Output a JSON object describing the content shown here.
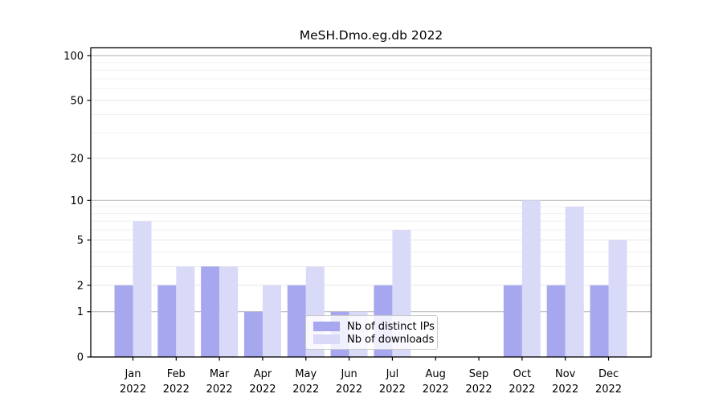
{
  "title": "MeSH.Dmo.eg.db 2022",
  "chart_data": {
    "type": "bar",
    "title": "MeSH.Dmo.eg.db 2022",
    "categories": [
      "Jan",
      "Feb",
      "Mar",
      "Apr",
      "May",
      "Jun",
      "Jul",
      "Aug",
      "Sep",
      "Oct",
      "Nov",
      "Dec"
    ],
    "year_label": "2022",
    "series": [
      {
        "name": "Nb of distinct IPs",
        "color": "#a7a7f0",
        "values": [
          2,
          2,
          3,
          1,
          2,
          1,
          2,
          0,
          0,
          2,
          2,
          2
        ]
      },
      {
        "name": "Nb of downloads",
        "color": "#d9d9f8",
        "values": [
          7,
          3,
          3,
          2,
          3,
          1,
          6,
          0,
          0,
          10,
          9,
          5
        ]
      }
    ],
    "yscale": "log1p",
    "ylim": [
      0,
      113
    ],
    "yticks": [
      0,
      1,
      2,
      5,
      10,
      20,
      50,
      100
    ],
    "minor_yticks": [
      3,
      4,
      6,
      7,
      8,
      9,
      30,
      40,
      60,
      70,
      80,
      90
    ],
    "decade_gridlines": [
      1,
      10,
      100
    ],
    "grid": true,
    "legend_position": "lower center",
    "colors": {
      "decade_grid": "#b9b9b9",
      "major_grid": "#e7e7e7",
      "minor_grid": "#f0f0f0",
      "spine": "#000000",
      "text": "#000000"
    }
  }
}
